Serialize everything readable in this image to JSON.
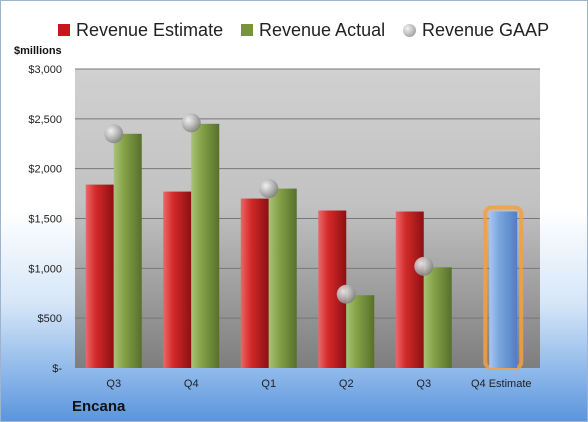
{
  "unit_label": "$millions",
  "company": "Encana",
  "colors": {
    "estimate": "#c8161d",
    "actual": "#77933c",
    "gaap": "#a6a6a6",
    "future_estimate": "#6a9bd8",
    "highlight": "#f5a040"
  },
  "legend": [
    {
      "label": "Revenue Estimate",
      "swatch": "rect",
      "color": "#c8161d"
    },
    {
      "label": "Revenue Actual",
      "swatch": "rect",
      "color": "#77933c"
    },
    {
      "label": "Revenue GAAP",
      "swatch": "dot",
      "color": "#a6a6a6"
    }
  ],
  "chart_data": {
    "type": "bar",
    "categories": [
      "Q3",
      "Q4",
      "Q1",
      "Q2",
      "Q3",
      "Q4 Estimate"
    ],
    "series": [
      {
        "name": "Revenue Estimate",
        "values": [
          1840,
          1770,
          1700,
          1580,
          1570,
          1570
        ]
      },
      {
        "name": "Revenue Actual",
        "values": [
          2350,
          2450,
          1800,
          730,
          1010,
          null
        ]
      },
      {
        "name": "Revenue GAAP",
        "values": [
          2350,
          2460,
          1800,
          740,
          1020,
          null
        ]
      }
    ],
    "ylabel": "$millions",
    "ylim": [
      0,
      3000
    ],
    "yticks": [
      0,
      500,
      1000,
      1500,
      2000,
      2500,
      3000
    ],
    "ytick_labels": [
      "$-",
      "$500",
      "$1,000",
      "$1,500",
      "$2,000",
      "$2,500",
      "$3,000"
    ],
    "grid": true,
    "legend_position": "top"
  }
}
